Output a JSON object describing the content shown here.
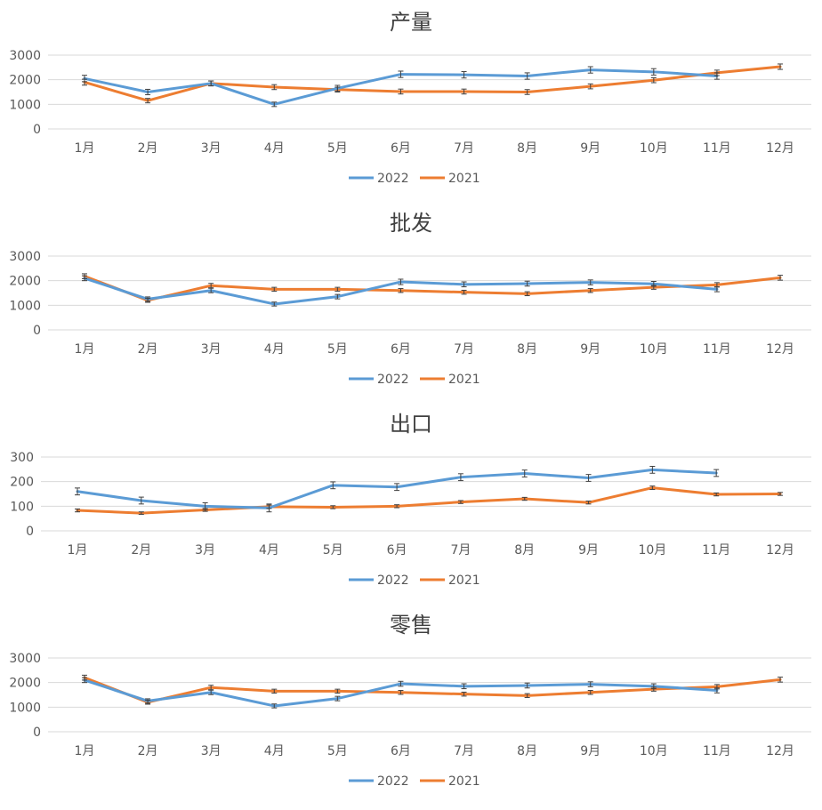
{
  "chart_data": [
    {
      "type": "line",
      "title": "产量",
      "categories": [
        "1月",
        "2月",
        "3月",
        "4月",
        "5月",
        "6月",
        "7月",
        "8月",
        "9月",
        "10月",
        "11月",
        "12月"
      ],
      "yticks": [
        "0",
        "1000",
        "2000",
        "3000"
      ],
      "ylim": [
        0,
        3000
      ],
      "series": [
        {
          "name": "2022",
          "color": "#5b9bd5",
          "values": [
            2050,
            1500,
            1850,
            1000,
            1650,
            2220,
            2200,
            2150,
            2400,
            2320,
            2150,
            null
          ],
          "errors": [
            130,
            110,
            100,
            90,
            120,
            130,
            130,
            130,
            130,
            130,
            130,
            null
          ]
        },
        {
          "name": "2021",
          "color": "#ed7d31",
          "values": [
            1900,
            1150,
            1850,
            1700,
            1600,
            1520,
            1520,
            1500,
            1730,
            1980,
            2280,
            2530
          ],
          "errors": [
            120,
            90,
            100,
            100,
            100,
            100,
            100,
            100,
            100,
            100,
            110,
            110
          ]
        }
      ],
      "legend": "bottom"
    },
    {
      "type": "line",
      "title": "批发",
      "categories": [
        "1月",
        "2月",
        "3月",
        "4月",
        "5月",
        "6月",
        "7月",
        "8月",
        "9月",
        "10月",
        "11月",
        "12月"
      ],
      "yticks": [
        "0",
        "1000",
        "2000",
        "3000"
      ],
      "ylim": [
        0,
        3000
      ],
      "series": [
        {
          "name": "2022",
          "color": "#5b9bd5",
          "values": [
            2100,
            1250,
            1600,
            1050,
            1350,
            1950,
            1850,
            1880,
            1930,
            1870,
            1650,
            null
          ],
          "errors": [
            100,
            90,
            90,
            80,
            90,
            110,
            100,
            100,
            100,
            100,
            100,
            null
          ]
        },
        {
          "name": "2021",
          "color": "#ed7d31",
          "values": [
            2180,
            1200,
            1800,
            1650,
            1650,
            1600,
            1530,
            1470,
            1600,
            1730,
            1830,
            2120
          ],
          "errors": [
            100,
            80,
            90,
            80,
            80,
            80,
            80,
            80,
            80,
            80,
            90,
            100
          ]
        }
      ],
      "legend": "bottom"
    },
    {
      "type": "line",
      "title": "出口",
      "categories": [
        "1月",
        "2月",
        "3月",
        "4月",
        "5月",
        "6月",
        "7月",
        "8月",
        "9月",
        "10月",
        "11月",
        "12月"
      ],
      "yticks": [
        "0",
        "100",
        "200",
        "300"
      ],
      "ylim": [
        0,
        300
      ],
      "series": [
        {
          "name": "2022",
          "color": "#5b9bd5",
          "values": [
            160,
            123,
            100,
            93,
            185,
            178,
            218,
            233,
            215,
            248,
            235,
            null
          ],
          "errors": [
            14,
            14,
            14,
            16,
            14,
            14,
            14,
            14,
            14,
            14,
            14,
            null
          ]
        },
        {
          "name": "2021",
          "color": "#ed7d31",
          "values": [
            83,
            72,
            85,
            98,
            96,
            100,
            117,
            130,
            115,
            175,
            148,
            150
          ],
          "errors": [
            6,
            5,
            6,
            7,
            6,
            6,
            6,
            6,
            6,
            7,
            6,
            6
          ]
        }
      ],
      "legend": "bottom"
    },
    {
      "type": "line",
      "title": "零售",
      "categories": [
        "1月",
        "2月",
        "3月",
        "4月",
        "5月",
        "6月",
        "7月",
        "8月",
        "9月",
        "10月",
        "11月",
        "12月"
      ],
      "yticks": [
        "0",
        "1000",
        "2000",
        "3000"
      ],
      "ylim": [
        0,
        3000
      ],
      "series": [
        {
          "name": "2022",
          "color": "#5b9bd5",
          "values": [
            2100,
            1250,
            1600,
            1050,
            1350,
            1950,
            1850,
            1880,
            1930,
            1850,
            1680,
            null
          ],
          "errors": [
            100,
            90,
            90,
            80,
            90,
            100,
            100,
            100,
            100,
            100,
            100,
            null
          ]
        },
        {
          "name": "2021",
          "color": "#ed7d31",
          "values": [
            2200,
            1200,
            1800,
            1650,
            1650,
            1600,
            1530,
            1470,
            1600,
            1730,
            1830,
            2120
          ],
          "errors": [
            100,
            80,
            90,
            80,
            80,
            80,
            80,
            80,
            80,
            80,
            90,
            100
          ]
        }
      ],
      "legend": "bottom"
    }
  ]
}
